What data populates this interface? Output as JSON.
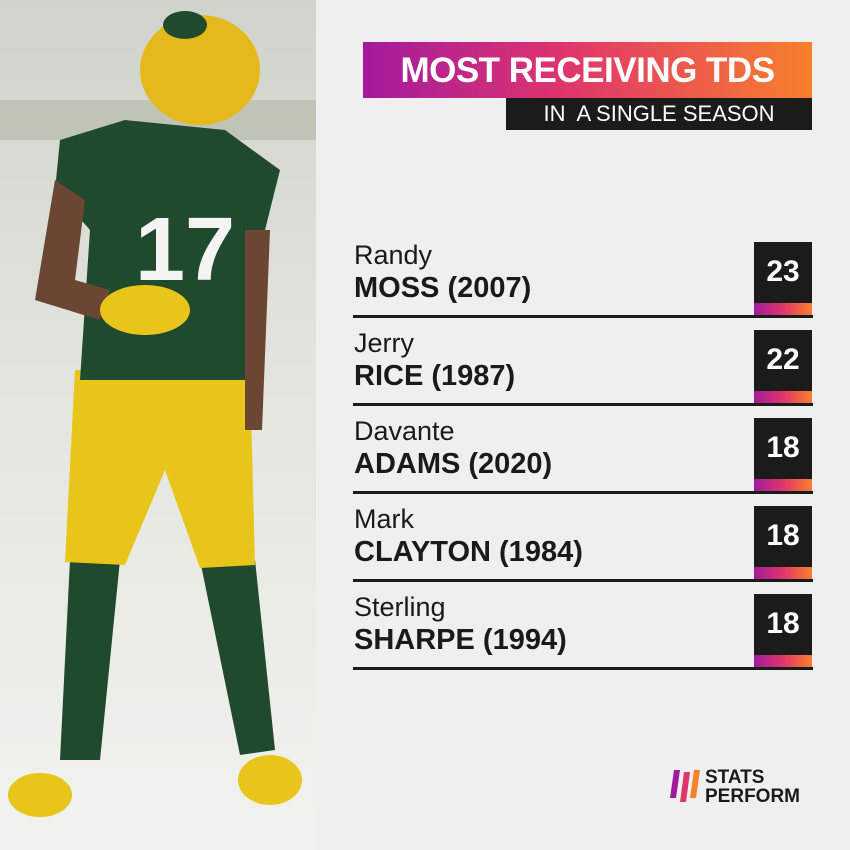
{
  "header": {
    "title": "MOST RECEIVING TDS",
    "subtitle": "IN  A SINGLE SEASON"
  },
  "photo": {
    "jersey_number": "17"
  },
  "rows": [
    {
      "first": "Randy",
      "last": "MOSS (2007)",
      "value": 23
    },
    {
      "first": "Jerry",
      "last": "RICE (1987)",
      "value": 22
    },
    {
      "first": "Davante",
      "last": "ADAMS (2020)",
      "value": 18
    },
    {
      "first": "Mark",
      "last": "CLAYTON (1984)",
      "value": 18
    },
    {
      "first": "Sterling",
      "last": "SHARPE (1994)",
      "value": 18
    }
  ],
  "logo": {
    "line1": "STATS",
    "line2": "PERFORM"
  }
}
